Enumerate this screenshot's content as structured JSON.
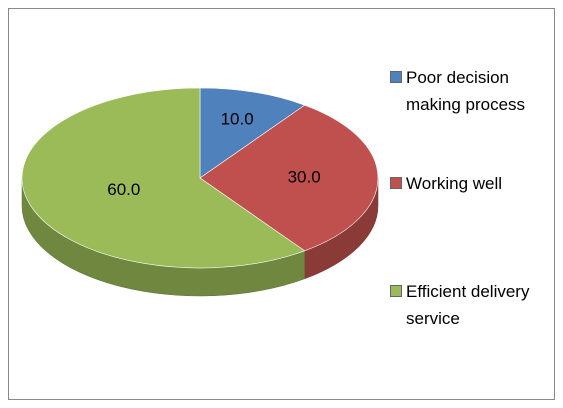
{
  "chart_data": {
    "type": "pie",
    "categories": [
      "Poor decision making process",
      "Working well",
      "Efficient delivery service"
    ],
    "values": [
      10,
      30,
      60
    ],
    "value_labels": [
      "10.0",
      "30.0",
      "60.0"
    ],
    "colors": [
      "#4f81bd",
      "#c0504d",
      "#9bbb59"
    ],
    "legend": "right"
  }
}
